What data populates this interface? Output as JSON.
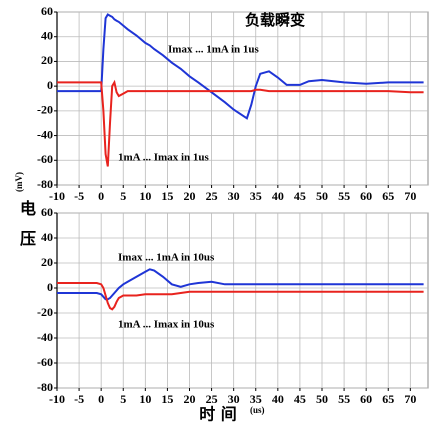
{
  "chart_data": [
    {
      "type": "line",
      "title": "负载瞬变",
      "ylabel": "电压",
      "yunit": "(mV)",
      "annotations": [
        "Imax ... 1mA in 1us",
        "1mA ... Imax in 1us"
      ],
      "x": [
        -10,
        -5,
        -1,
        0,
        0.5,
        1,
        1.5,
        2,
        2.5,
        3,
        3.5,
        4,
        5,
        6,
        8,
        10,
        11,
        12,
        14,
        16,
        18,
        20,
        22,
        25,
        28,
        30,
        33,
        34,
        35,
        36,
        38,
        40,
        42,
        45,
        47,
        50,
        55,
        60,
        65,
        70,
        73
      ],
      "series": [
        {
          "color": "#1f35d6",
          "values": [
            -4,
            -4,
            -4,
            -4,
            30,
            55,
            58,
            57,
            56,
            54,
            53,
            52,
            49,
            46,
            41,
            35,
            33,
            30,
            25,
            19,
            14,
            8,
            3,
            -5,
            -13,
            -19,
            -26,
            -15,
            0,
            10,
            12,
            7,
            1,
            1,
            4,
            5,
            3,
            2,
            3,
            3,
            3
          ]
        },
        {
          "color": "#e8231e",
          "values": [
            3,
            3,
            3,
            3,
            -20,
            -55,
            -65,
            -30,
            0,
            3,
            -5,
            -8,
            -6,
            -4,
            -4,
            -4,
            -4,
            -4,
            -4,
            -4,
            -4,
            -4,
            -4,
            -4,
            -4,
            -4,
            -4,
            -4,
            -3,
            -3,
            -4,
            -4,
            -4,
            -4,
            -4,
            -4,
            -4,
            -4,
            -4,
            -5,
            -5
          ]
        }
      ],
      "xlim": [
        -10,
        74
      ],
      "xticks": [
        -10,
        -5,
        0,
        5,
        10,
        15,
        20,
        25,
        30,
        35,
        40,
        45,
        50,
        55,
        60,
        65,
        70
      ],
      "ylim": [
        -80,
        60
      ],
      "yticks": [
        -80,
        -60,
        -40,
        -20,
        0,
        20,
        40,
        60
      ],
      "grid": true
    },
    {
      "type": "line",
      "xlabel": "时 间",
      "xunit": "(us)",
      "annotations": [
        "Imax ... 1mA in 10us",
        "1mA ... Imax in 10us"
      ],
      "x": [
        -10,
        -5,
        -1,
        0,
        0.5,
        1,
        1.5,
        2,
        2.5,
        3,
        3.5,
        4,
        5,
        6,
        8,
        10,
        11,
        12,
        14,
        16,
        18,
        20,
        22,
        25,
        28,
        30,
        33,
        34,
        35,
        36,
        38,
        40,
        42,
        45,
        47,
        50,
        55,
        60,
        65,
        70,
        73
      ],
      "series": [
        {
          "color": "#1f35d6",
          "values": [
            -4,
            -4,
            -4,
            -5,
            -7,
            -9,
            -9,
            -8,
            -6,
            -4,
            -2,
            0,
            3,
            5,
            9,
            13,
            15,
            14,
            9,
            3,
            1,
            3,
            4,
            5,
            3,
            3,
            3,
            3,
            3,
            3,
            3,
            3,
            3,
            3,
            3,
            3,
            3,
            3,
            3,
            3,
            3
          ]
        },
        {
          "color": "#e8231e",
          "values": [
            4,
            4,
            4,
            3,
            0,
            -6,
            -12,
            -16,
            -17,
            -15,
            -11,
            -8,
            -6,
            -6,
            -6,
            -5,
            -5,
            -5,
            -5,
            -5,
            -4,
            -3,
            -3,
            -3,
            -3,
            -3,
            -3,
            -3,
            -3,
            -3,
            -3,
            -3,
            -3,
            -3,
            -3,
            -3,
            -3,
            -3,
            -3,
            -3,
            -3
          ]
        }
      ],
      "xlim": [
        -10,
        74
      ],
      "xticks": [
        -10,
        -5,
        0,
        5,
        10,
        15,
        20,
        25,
        30,
        35,
        40,
        45,
        50,
        55,
        60,
        65,
        70
      ],
      "ylim": [
        -80,
        60
      ],
      "yticks": [
        -80,
        -60,
        -40,
        -20,
        0,
        20,
        40,
        60
      ],
      "grid": true
    }
  ]
}
